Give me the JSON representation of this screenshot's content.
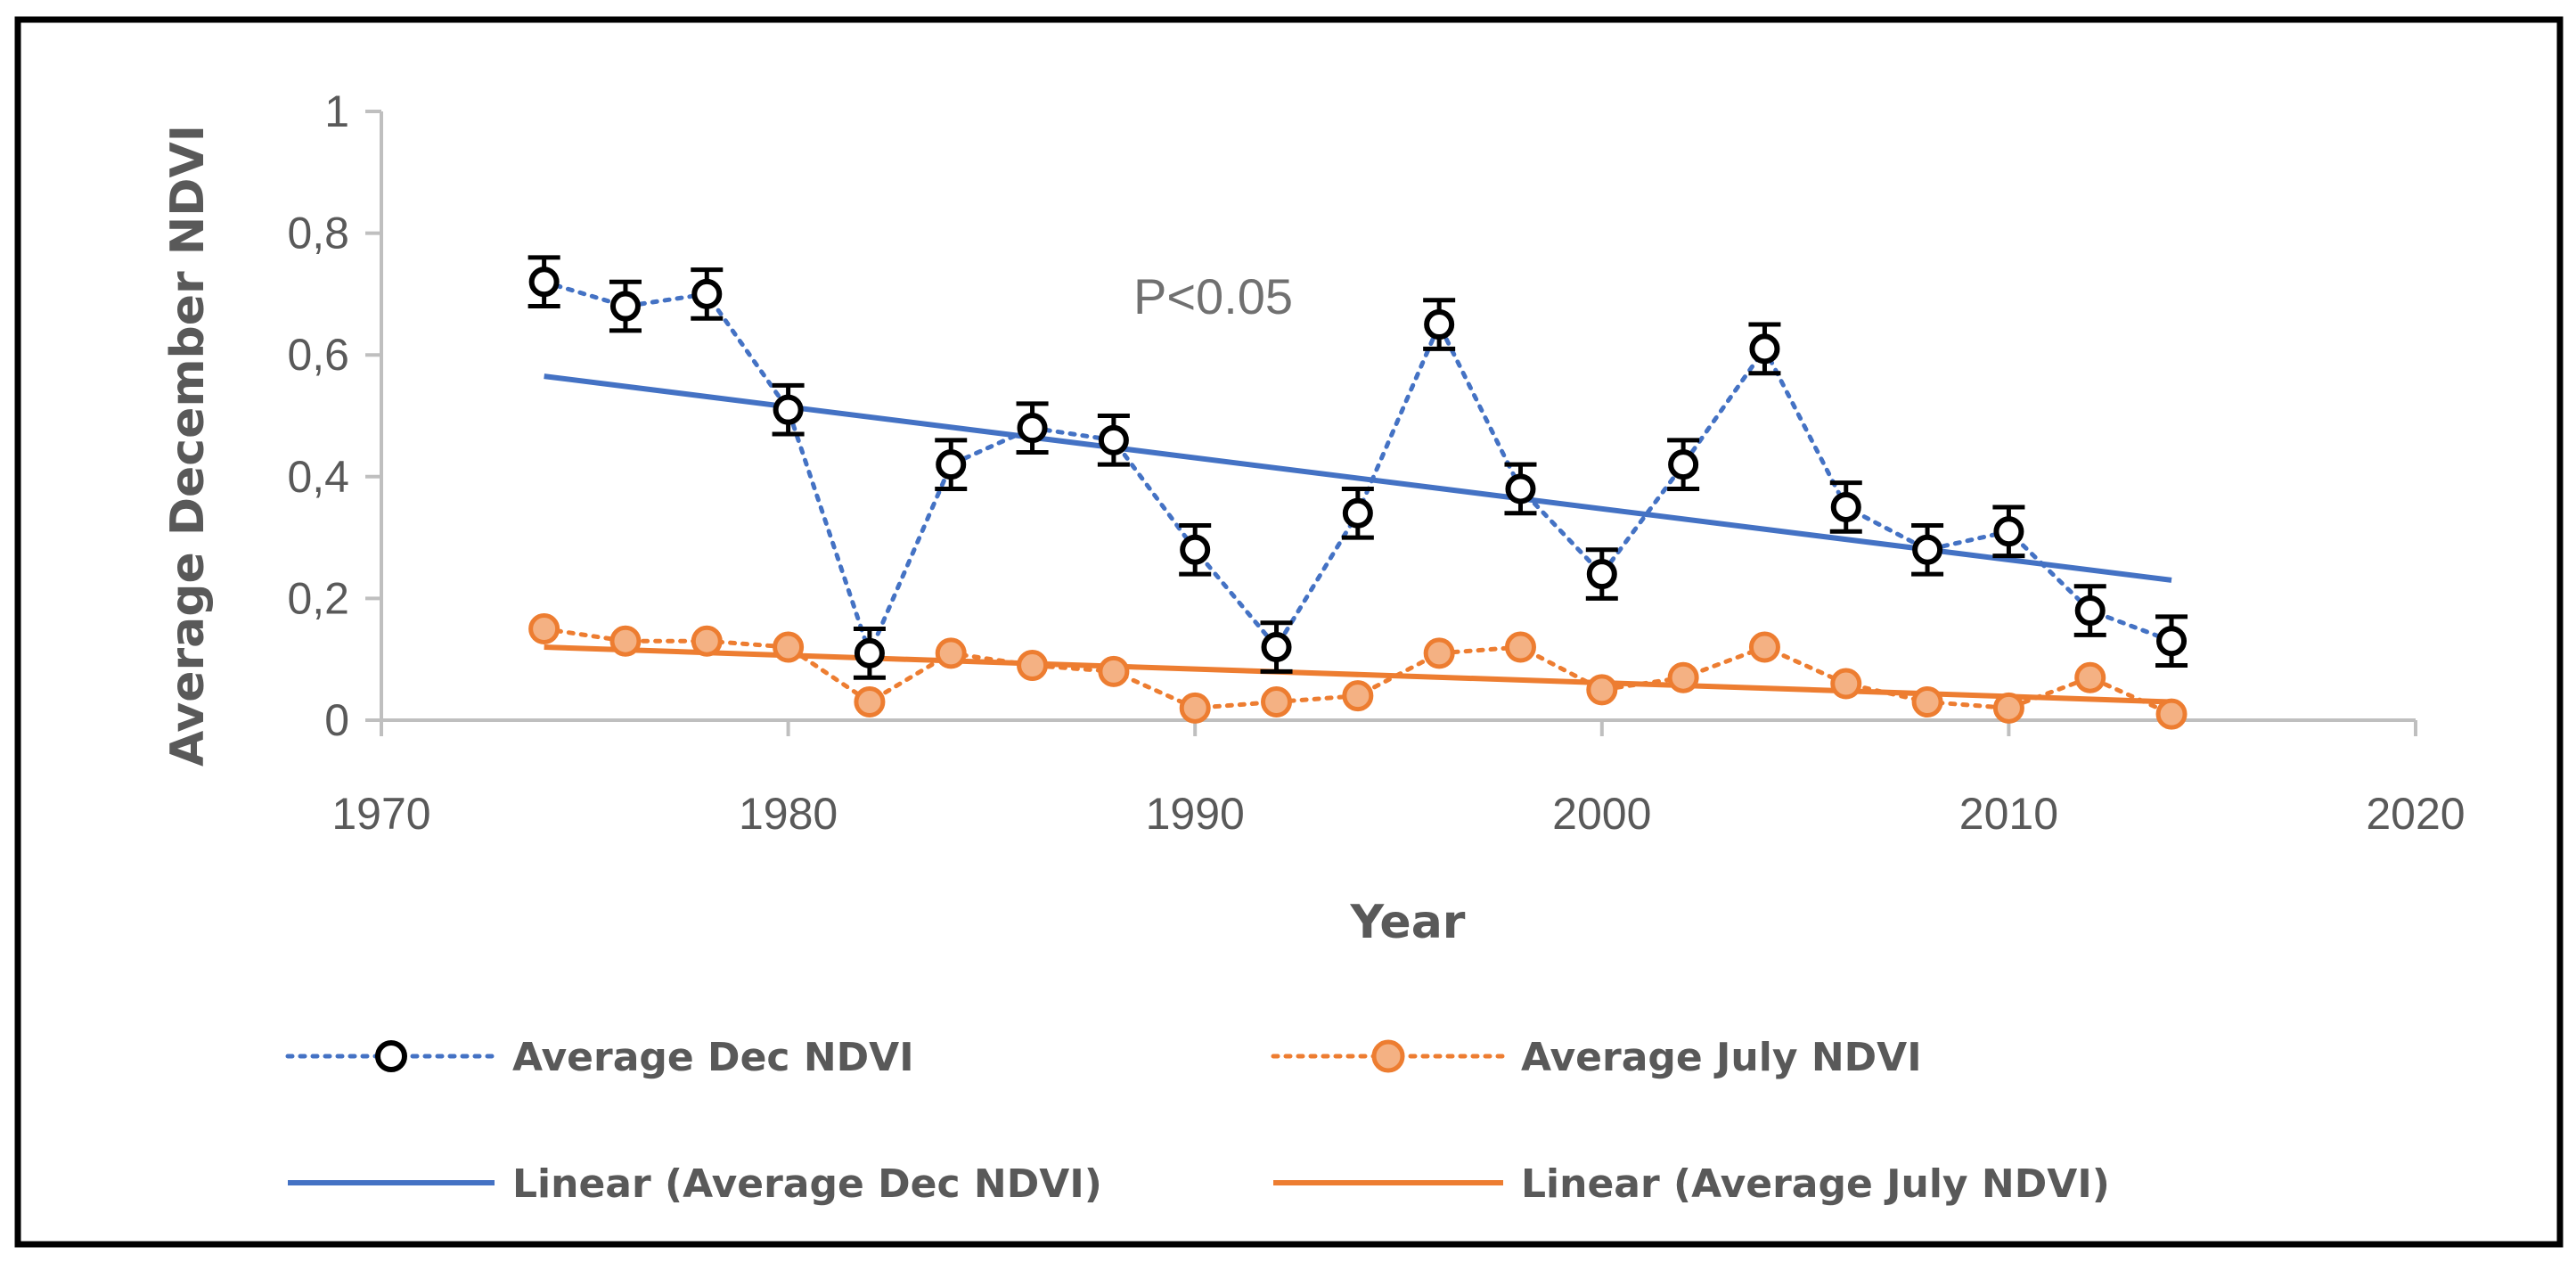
{
  "chart_data": {
    "type": "scatter",
    "xlabel": "Year",
    "ylabel": "Average December NDVI",
    "xlim": [
      1970,
      2020
    ],
    "ylim": [
      0,
      1
    ],
    "xticks": [
      "1970",
      "1980",
      "1990",
      "2000",
      "2010",
      "2020"
    ],
    "yticks": [
      "0",
      "0,2",
      "0,4",
      "0,6",
      "0,8",
      "1"
    ],
    "annotation": "P<0.05",
    "grid": false,
    "legend_position": "bottom",
    "x": [
      1974,
      1976,
      1978,
      1980,
      1982,
      1984,
      1986,
      1988,
      1990,
      1992,
      1994,
      1996,
      1998,
      2000,
      2002,
      2004,
      2006,
      2008,
      2010,
      2012,
      2014
    ],
    "series": [
      {
        "name": "Average Dec NDVI",
        "color": "#000000",
        "line_color": "#4472C4",
        "error": 0.04,
        "values": [
          0.72,
          0.68,
          0.7,
          0.51,
          0.11,
          0.42,
          0.48,
          0.46,
          0.28,
          0.12,
          0.34,
          0.65,
          0.38,
          0.24,
          0.42,
          0.61,
          0.35,
          0.28,
          0.31,
          0.18,
          0.13
        ]
      },
      {
        "name": "Average July NDVI",
        "color": "#F4B183",
        "line_color": "#ED7D31",
        "values": [
          0.15,
          0.13,
          0.13,
          0.12,
          0.03,
          0.11,
          0.09,
          0.08,
          0.02,
          0.03,
          0.04,
          0.11,
          0.12,
          0.05,
          0.07,
          0.12,
          0.06,
          0.03,
          0.02,
          0.07,
          0.01
        ]
      }
    ],
    "trendlines": [
      {
        "name": "Linear (Average Dec NDVI)",
        "color": "#4472C4",
        "x": [
          1974,
          2014
        ],
        "y": [
          0.565,
          0.23
        ]
      },
      {
        "name": "Linear (Average July NDVI)",
        "color": "#ED7D31",
        "x": [
          1974,
          2014
        ],
        "y": [
          0.12,
          0.03
        ]
      }
    ]
  }
}
